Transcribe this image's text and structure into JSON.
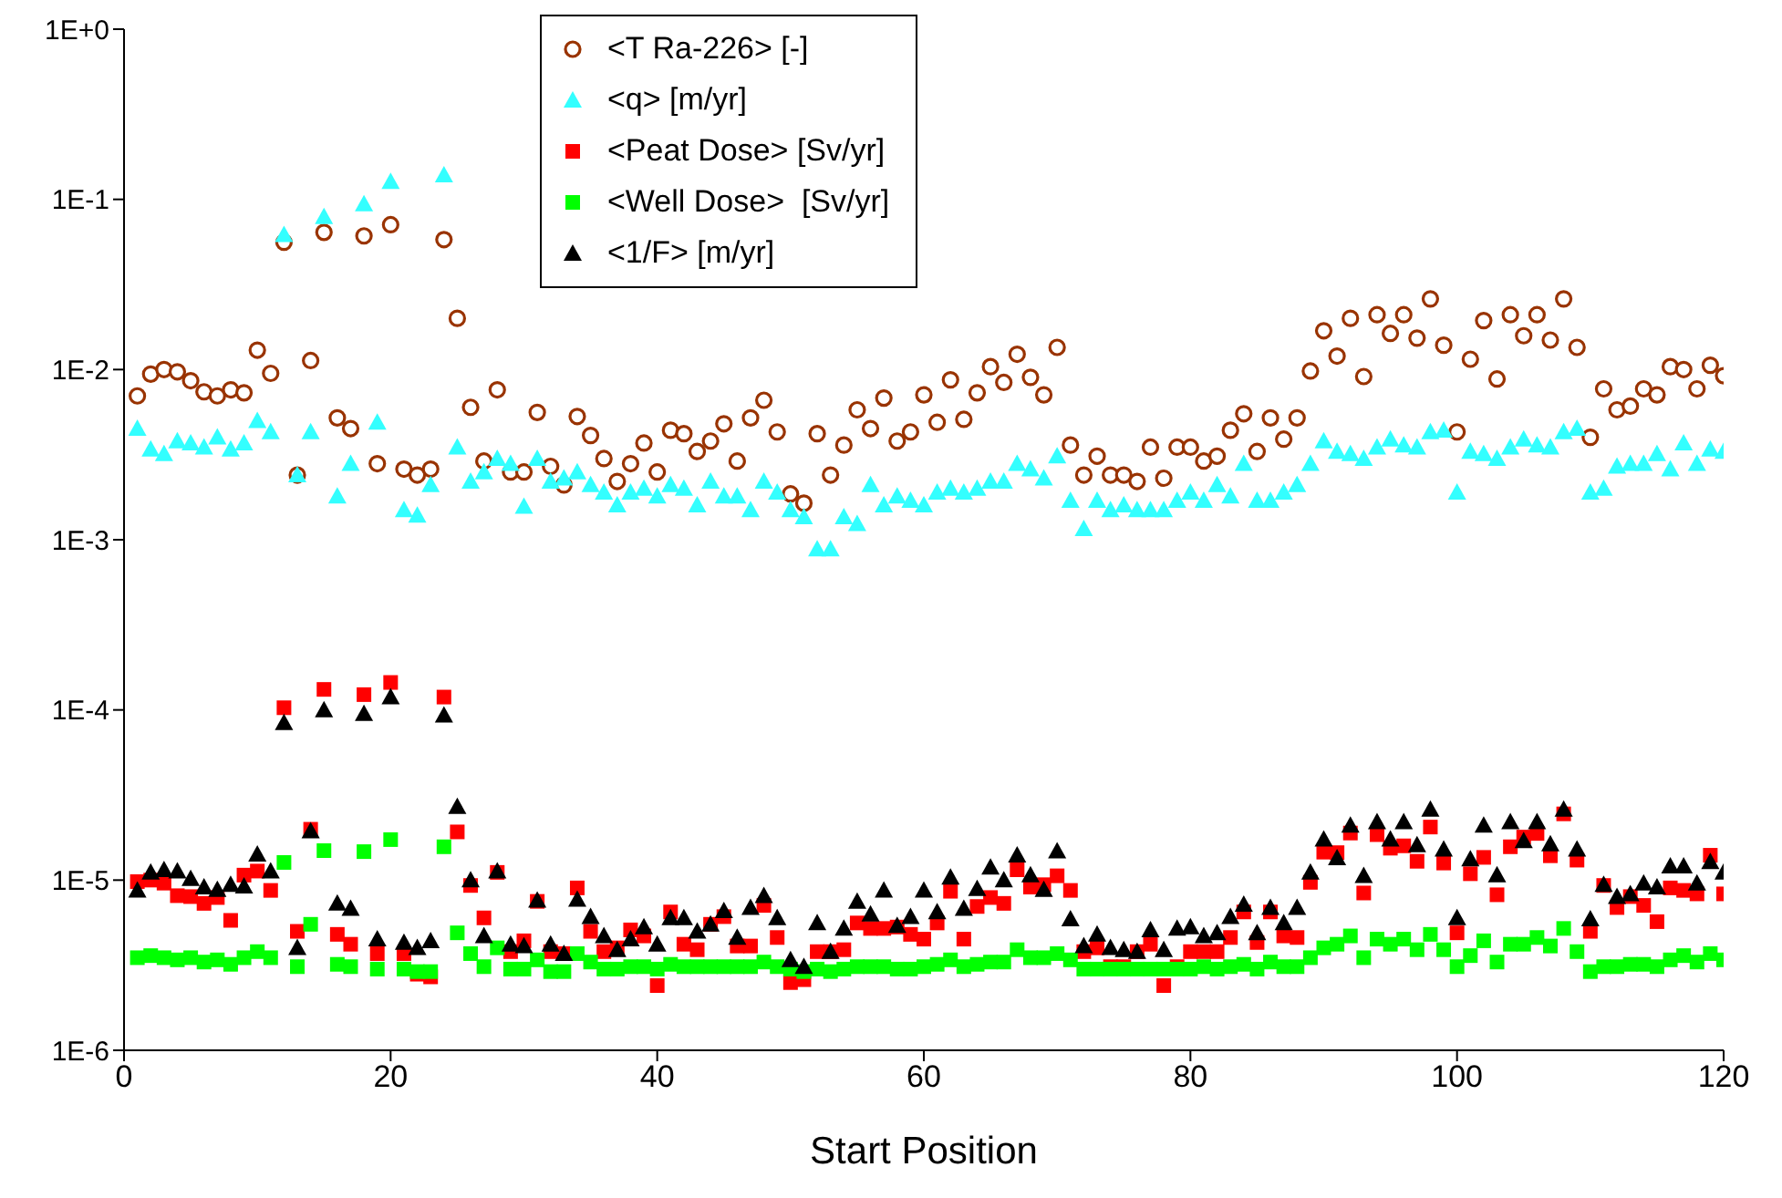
{
  "chart_data": {
    "type": "scatter",
    "xlabel": "Start Position",
    "legend": "top",
    "grid": false,
    "x": [
      1,
      2,
      3,
      4,
      5,
      6,
      7,
      8,
      9,
      10,
      11,
      12,
      13,
      14,
      15,
      16,
      17,
      18,
      19,
      20,
      21,
      22,
      23,
      24,
      25,
      26,
      27,
      28,
      29,
      30,
      31,
      32,
      33,
      34,
      35,
      36,
      37,
      38,
      39,
      40,
      41,
      42,
      43,
      44,
      45,
      46,
      47,
      48,
      49,
      50,
      51,
      52,
      53,
      54,
      55,
      56,
      57,
      58,
      59,
      60,
      61,
      62,
      63,
      64,
      65,
      66,
      67,
      68,
      69,
      70,
      71,
      72,
      73,
      74,
      75,
      76,
      77,
      78,
      79,
      80,
      81,
      82,
      83,
      84,
      85,
      86,
      87,
      88,
      89,
      90,
      91,
      92,
      93,
      94,
      95,
      96,
      97,
      98,
      99,
      100,
      101,
      102,
      103,
      104,
      105,
      106,
      107,
      108,
      109,
      110,
      111,
      112,
      113,
      114,
      115,
      116,
      117,
      118,
      119,
      120
    ],
    "xlim": [
      0,
      120
    ],
    "xticks": [
      0,
      20,
      40,
      60,
      80,
      100,
      120
    ],
    "log": "y",
    "ylim": [
      1e-06,
      1
    ],
    "yticks": [
      {
        "value": 1e-06,
        "label": "1E-6"
      },
      {
        "value": 1e-05,
        "label": "1E-5"
      },
      {
        "value": 0.0001,
        "label": "1E-4"
      },
      {
        "value": 0.001,
        "label": "1E-3"
      },
      {
        "value": 0.01,
        "label": "1E-2"
      },
      {
        "value": 0.1,
        "label": "1E-1"
      },
      {
        "value": 1,
        "label": "1E+0"
      }
    ],
    "series": [
      {
        "name": "<T Ra-226> [-]",
        "color": "#993300",
        "marker": "circle",
        "values": [
          0.007,
          0.0094,
          0.01,
          0.0097,
          0.0086,
          0.0074,
          0.007,
          0.0076,
          0.0073,
          0.013,
          0.0095,
          0.056,
          0.0024,
          0.0113,
          0.064,
          0.0052,
          0.0045,
          0.061,
          0.0028,
          0.071,
          0.0026,
          0.0024,
          0.0026,
          0.058,
          0.02,
          0.006,
          0.0029,
          0.0076,
          0.0025,
          0.0025,
          0.0056,
          0.0027,
          0.0021,
          0.0053,
          0.0041,
          0.003,
          0.0022,
          0.0028,
          0.0037,
          0.0025,
          0.0044,
          0.0042,
          0.0033,
          0.0038,
          0.0048,
          0.0029,
          0.0052,
          0.0066,
          0.0043,
          0.00186,
          0.00164,
          0.0042,
          0.0024,
          0.0036,
          0.0058,
          0.0045,
          0.0068,
          0.0038,
          0.0043,
          0.0071,
          0.0049,
          0.0087,
          0.0051,
          0.0073,
          0.0104,
          0.0084,
          0.0123,
          0.009,
          0.0071,
          0.0135,
          0.0036,
          0.0024,
          0.0031,
          0.0024,
          0.0024,
          0.0022,
          0.0035,
          0.0023,
          0.0035,
          0.0035,
          0.0029,
          0.0031,
          0.0044,
          0.0055,
          0.0033,
          0.0052,
          0.0039,
          0.0052,
          0.0098,
          0.0169,
          0.012,
          0.02,
          0.0091,
          0.021,
          0.0163,
          0.021,
          0.0153,
          0.026,
          0.0139,
          0.0043,
          0.0115,
          0.0194,
          0.0088,
          0.021,
          0.0158,
          0.021,
          0.0149,
          0.026,
          0.0135,
          0.004,
          0.0077,
          0.0058,
          0.0061,
          0.0077,
          0.0071,
          0.0104,
          0.01,
          0.0077,
          0.0106,
          0.0092
        ]
      },
      {
        "name": "<q> [m/yr]",
        "color": "#33ffff",
        "marker": "triangle",
        "values": [
          0.0045,
          0.0034,
          0.0032,
          0.0038,
          0.0037,
          0.0035,
          0.004,
          0.0034,
          0.0037,
          0.005,
          0.0043,
          0.062,
          0.0024,
          0.0043,
          0.079,
          0.0018,
          0.0028,
          0.094,
          0.0049,
          0.127,
          0.0015,
          0.00139,
          0.0021,
          0.139,
          0.0035,
          0.0022,
          0.0025,
          0.003,
          0.0028,
          0.00157,
          0.003,
          0.0022,
          0.0023,
          0.0025,
          0.0021,
          0.0019,
          0.0016,
          0.0019,
          0.002,
          0.0018,
          0.0021,
          0.002,
          0.0016,
          0.0022,
          0.0018,
          0.0018,
          0.0015,
          0.0022,
          0.0019,
          0.0015,
          0.00136,
          0.00088,
          0.00088,
          0.00136,
          0.00124,
          0.0021,
          0.0016,
          0.0018,
          0.0017,
          0.0016,
          0.0019,
          0.002,
          0.0019,
          0.002,
          0.0022,
          0.0022,
          0.0028,
          0.0026,
          0.0023,
          0.0031,
          0.0017,
          0.00116,
          0.0017,
          0.0015,
          0.0016,
          0.0015,
          0.0015,
          0.0015,
          0.0017,
          0.0019,
          0.0017,
          0.0021,
          0.0018,
          0.0028,
          0.0017,
          0.0017,
          0.0019,
          0.0021,
          0.0028,
          0.0038,
          0.0033,
          0.0032,
          0.003,
          0.0035,
          0.0039,
          0.0036,
          0.0035,
          0.0043,
          0.0044,
          0.0019,
          0.0033,
          0.0032,
          0.003,
          0.0035,
          0.0039,
          0.0036,
          0.0035,
          0.0043,
          0.0045,
          0.0019,
          0.002,
          0.0027,
          0.0028,
          0.0028,
          0.0032,
          0.0026,
          0.0037,
          0.0028,
          0.0034,
          0.0033
        ]
      },
      {
        "name": "<Peat Dose> [Sv/yr]",
        "color": "#ff0000",
        "marker": "square",
        "values": [
          9.8e-06,
          1e-05,
          9.6e-06,
          8.1e-06,
          8e-06,
          7.3e-06,
          7.9e-06,
          5.8e-06,
          1.07e-05,
          1.13e-05,
          8.7e-06,
          0.000103,
          5e-06,
          1.99e-05,
          0.000132,
          4.8e-06,
          4.2e-06,
          0.000123,
          3.7e-06,
          0.000145,
          3.7e-06,
          2.8e-06,
          2.7e-06,
          0.000119,
          1.92e-05,
          9.3e-06,
          6e-06,
          1.11e-05,
          3.8e-06,
          4.4e-06,
          7.5e-06,
          3.8e-06,
          3.7e-06,
          9e-06,
          5e-06,
          3.8e-06,
          4e-06,
          5.1e-06,
          4.7e-06,
          2.4e-06,
          6.5e-06,
          4.2e-06,
          3.9e-06,
          5.5e-06,
          6.1e-06,
          4.1e-06,
          4.1e-06,
          7.1e-06,
          4.6e-06,
          2.5e-06,
          2.6e-06,
          3.8e-06,
          3.8e-06,
          3.9e-06,
          5.6e-06,
          5.2e-06,
          5.2e-06,
          5.3e-06,
          4.8e-06,
          4.5e-06,
          5.6e-06,
          8.6e-06,
          4.5e-06,
          7e-06,
          7.9e-06,
          7.3e-06,
          1.15e-05,
          9.1e-06,
          9.4e-06,
          1.06e-05,
          8.7e-06,
          3.8e-06,
          4e-06,
          3.1e-06,
          3.1e-06,
          3.8e-06,
          4.2e-06,
          2.4e-06,
          3.1e-06,
          3.8e-06,
          3.8e-06,
          3.8e-06,
          4.6e-06,
          6.5e-06,
          4.3e-06,
          6.5e-06,
          4.7e-06,
          4.6e-06,
          9.7e-06,
          1.46e-05,
          1.45e-05,
          1.89e-05,
          8.4e-06,
          1.85e-05,
          1.54e-05,
          1.59e-05,
          1.29e-05,
          2.05e-05,
          1.26e-05,
          4.9e-06,
          1.09e-05,
          1.36e-05,
          8.2e-06,
          1.57e-05,
          1.79e-05,
          1.88e-05,
          1.39e-05,
          2.45e-05,
          1.31e-05,
          5e-06,
          9.3e-06,
          6.9e-06,
          8e-06,
          7.1e-06,
          5.7e-06,
          9e-06,
          8.7e-06,
          8.3e-06,
          1.4e-05,
          8.3e-06
        ]
      },
      {
        "name": "<Well Dose>  [Sv/yr]",
        "color": "#00ff00",
        "marker": "square",
        "values": [
          3.5e-06,
          3.6e-06,
          3.5e-06,
          3.4e-06,
          3.5e-06,
          3.3e-06,
          3.4e-06,
          3.2e-06,
          3.5e-06,
          3.8e-06,
          3.5e-06,
          1.27e-05,
          3.1e-06,
          5.5e-06,
          1.49e-05,
          3.2e-06,
          3.1e-06,
          1.47e-05,
          3e-06,
          1.73e-05,
          3e-06,
          2.9e-06,
          2.9e-06,
          1.57e-05,
          4.9e-06,
          3.7e-06,
          3.1e-06,
          4e-06,
          3e-06,
          3e-06,
          3.4e-06,
          2.9e-06,
          2.9e-06,
          3.7e-06,
          3.3e-06,
          3e-06,
          3e-06,
          3.1e-06,
          3.1e-06,
          3e-06,
          3.2e-06,
          3.1e-06,
          3.1e-06,
          3.1e-06,
          3.1e-06,
          3.1e-06,
          3.1e-06,
          3.3e-06,
          3.1e-06,
          3e-06,
          2.9e-06,
          3e-06,
          2.9e-06,
          3e-06,
          3.1e-06,
          3.1e-06,
          3.1e-06,
          3e-06,
          3e-06,
          3.1e-06,
          3.2e-06,
          3.4e-06,
          3.1e-06,
          3.2e-06,
          3.3e-06,
          3.3e-06,
          3.9e-06,
          3.5e-06,
          3.5e-06,
          3.7e-06,
          3.4e-06,
          3e-06,
          3e-06,
          3e-06,
          3e-06,
          3e-06,
          3e-06,
          3e-06,
          3e-06,
          3e-06,
          3.1e-06,
          3e-06,
          3.1e-06,
          3.2e-06,
          3e-06,
          3.3e-06,
          3.1e-06,
          3.1e-06,
          3.5e-06,
          4e-06,
          4.2e-06,
          4.7e-06,
          3.5e-06,
          4.5e-06,
          4.2e-06,
          4.5e-06,
          3.9e-06,
          4.8e-06,
          3.9e-06,
          3.1e-06,
          3.6e-06,
          4.4e-06,
          3.3e-06,
          4.2e-06,
          4.2e-06,
          4.6e-06,
          4.1e-06,
          5.2e-06,
          3.8e-06,
          2.9e-06,
          3.1e-06,
          3.1e-06,
          3.2e-06,
          3.2e-06,
          3.1e-06,
          3.4e-06,
          3.6e-06,
          3.3e-06,
          3.7e-06,
          3.4e-06
        ]
      },
      {
        "name": "<1/F> [m/yr]",
        "color": "#000000",
        "marker": "triangle",
        "values": [
          8.7e-06,
          1.11e-05,
          1.15e-05,
          1.13e-05,
          1.02e-05,
          9.1e-06,
          8.8e-06,
          9.4e-06,
          9.2e-06,
          1.42e-05,
          1.13e-05,
          8.4e-05,
          4e-06,
          1.94e-05,
          0.0001,
          7.3e-06,
          6.8e-06,
          9.5e-05,
          4.5e-06,
          0.000119,
          4.3e-06,
          4e-06,
          4.4e-06,
          9.3e-05,
          2.7e-05,
          1e-05,
          4.7e-06,
          1.13e-05,
          4.2e-06,
          4.1e-06,
          7.6e-06,
          4.2e-06,
          3.7e-06,
          7.7e-06,
          6.1e-06,
          4.7e-06,
          3.9e-06,
          4.5e-06,
          5.3e-06,
          4.2e-06,
          6e-06,
          6e-06,
          5e-06,
          5.5e-06,
          6.6e-06,
          4.6e-06,
          6.9e-06,
          8.1e-06,
          6e-06,
          3.4e-06,
          3.1e-06,
          5.6e-06,
          3.8e-06,
          5.2e-06,
          7.5e-06,
          6.3e-06,
          8.7e-06,
          5.4e-06,
          6.1e-06,
          8.7e-06,
          6.5e-06,
          1.04e-05,
          6.8e-06,
          8.9e-06,
          1.19e-05,
          1e-05,
          1.4e-05,
          1.07e-05,
          8.8e-06,
          1.48e-05,
          5.9e-06,
          4.1e-06,
          4.8e-06,
          4e-06,
          3.9e-06,
          3.8e-06,
          5.1e-06,
          3.9e-06,
          5.2e-06,
          5.3e-06,
          4.7e-06,
          4.9e-06,
          6.1e-06,
          7.2e-06,
          4.9e-06,
          6.9e-06,
          5.6e-06,
          6.9e-06,
          1.11e-05,
          1.74e-05,
          1.35e-05,
          2.1e-05,
          1.06e-05,
          2.2e-05,
          1.74e-05,
          2.2e-05,
          1.61e-05,
          2.6e-05,
          1.52e-05,
          6e-06,
          1.33e-05,
          2.1e-05,
          1.07e-05,
          2.2e-05,
          1.7e-05,
          2.2e-05,
          1.63e-05,
          2.6e-05,
          1.52e-05,
          5.9e-06,
          9.4e-06,
          8e-06,
          8.3e-06,
          9.6e-06,
          9.1e-06,
          1.21e-05,
          1.21e-05,
          9.6e-06,
          1.28e-05,
          1.11e-05
        ]
      }
    ]
  }
}
